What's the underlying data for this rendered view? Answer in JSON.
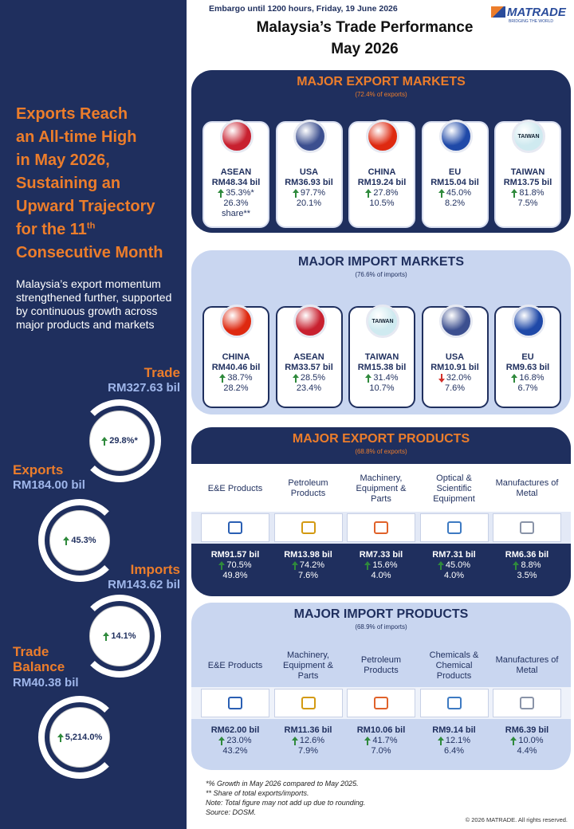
{
  "header": {
    "embargo": "Embargo until 1200 hours, Friday, 19 June 2026",
    "title_lines": [
      "Malaysia’s Trade Performance",
      "May 2026"
    ],
    "logo": "MATRADE",
    "logo_tagline": "BRIDGING THE WORLD"
  },
  "left": {
    "headline": [
      {
        "text": "Exports Reach"
      },
      {
        "text": "an All-time High"
      },
      {
        "text": "in May 2026,"
      },
      {
        "text": "Sustaining an"
      },
      {
        "text": "Upward Trajectory"
      },
      {
        "text": "for the 11",
        "sup": "th"
      },
      {
        "text": "Consecutive Month"
      }
    ],
    "summary": "Malaysia’s export momentum strengthened further, supported by continuous growth across major products and markets",
    "stats": [
      {
        "label": "Trade",
        "value": "RM327.63 bil",
        "growth": "29.8%*",
        "trend": "up"
      },
      {
        "label": "Exports",
        "value": "RM184.00 bil",
        "growth": "45.3%",
        "trend": "up"
      },
      {
        "label": "Imports",
        "value": "RM143.62 bil",
        "growth": "14.1%",
        "trend": "up"
      },
      {
        "label": "Trade Balance",
        "value": "RM40.38 bil",
        "growth": "5,214.0%",
        "trend": "up"
      }
    ]
  },
  "sections": [
    {
      "title": "MAJOR EXPORT MARKETS",
      "subtitle": "(72.4% of exports)",
      "kind": "markets",
      "theme": "dark",
      "items": [
        {
          "name": "ASEAN",
          "value": "RM48.34 bil",
          "growth": "35.3%*",
          "trend": "up",
          "share": "26.3% share**",
          "color": "#c8202f"
        },
        {
          "name": "USA",
          "value": "RM36.93 bil",
          "growth": "97.7%",
          "trend": "up",
          "share": "20.1%",
          "color": "#3c4f8f"
        },
        {
          "name": "CHINA",
          "value": "RM19.24 bil",
          "growth": "27.8%",
          "trend": "up",
          "share": "10.5%",
          "color": "#de2910"
        },
        {
          "name": "EU",
          "value": "RM15.04 bil",
          "growth": "45.0%",
          "trend": "up",
          "share": "8.2%",
          "color": "#1f49a8"
        },
        {
          "name": "TAIWAN",
          "icon_text": "TAIWAN",
          "value": "RM13.75 bil",
          "growth": "81.8%",
          "trend": "up",
          "share": "7.5%",
          "color": "#cfeaf0"
        }
      ]
    },
    {
      "title": "MAJOR IMPORT MARKETS",
      "subtitle": "(76.6% of imports)",
      "kind": "markets",
      "theme": "light",
      "items": [
        {
          "name": "CHINA",
          "value": "RM40.46 bil",
          "growth": "38.7%",
          "trend": "up",
          "share": "28.2%",
          "color": "#de2910"
        },
        {
          "name": "ASEAN",
          "value": "RM33.57 bil",
          "growth": "28.5%",
          "trend": "up",
          "share": "23.4%",
          "color": "#c8202f"
        },
        {
          "name": "TAIWAN",
          "icon_text": "TAIWAN",
          "value": "RM15.38 bil",
          "growth": "31.4%",
          "trend": "up",
          "share": "10.7%",
          "color": "#cfeaf0"
        },
        {
          "name": "USA",
          "value": "RM10.91 bil",
          "growth": "32.0%",
          "trend": "down",
          "share": "7.6%",
          "color": "#3c4f8f"
        },
        {
          "name": "EU",
          "value": "RM9.63 bil",
          "growth": "16.8%",
          "trend": "up",
          "share": "6.7%",
          "color": "#1f49a8"
        }
      ]
    },
    {
      "title": "MAJOR EXPORT PRODUCTS",
      "subtitle": "(68.8% of exports)",
      "kind": "products",
      "theme": "dark",
      "items": [
        {
          "name": "E&E Products",
          "value": "RM91.57 bil",
          "growth": "70.5%",
          "trend": "up",
          "share": "49.8%"
        },
        {
          "name": "Petroleum Products",
          "value": "RM13.98 bil",
          "growth": "74.2%",
          "trend": "up",
          "share": "7.6%"
        },
        {
          "name": "Machinery, Equipment & Parts",
          "value": "RM7.33 bil",
          "growth": "15.6%",
          "trend": "up",
          "share": "4.0%"
        },
        {
          "name": "Optical & Scientific Equipment",
          "value": "RM7.31 bil",
          "growth": "45.0%",
          "trend": "up",
          "share": "4.0%"
        },
        {
          "name": "Manufactures of Metal",
          "value": "RM6.36 bil",
          "growth": "8.8%",
          "trend": "up",
          "share": "3.5%"
        }
      ]
    },
    {
      "title": "MAJOR IMPORT PRODUCTS",
      "subtitle": "(68.9% of imports)",
      "kind": "products",
      "theme": "light",
      "items": [
        {
          "name": "E&E Products",
          "value": "RM62.00 bil",
          "growth": "23.0%",
          "trend": "up",
          "share": "43.2%"
        },
        {
          "name": "Machinery, Equipment & Parts",
          "value": "RM11.36 bil",
          "growth": "12.6%",
          "trend": "up",
          "share": "7.9%"
        },
        {
          "name": "Petroleum Products",
          "value": "RM10.06 bil",
          "growth": "41.7%",
          "trend": "up",
          "share": "7.0%"
        },
        {
          "name": "Chemicals & Chemical Products",
          "value": "RM9.14 bil",
          "growth": "12.1%",
          "trend": "up",
          "share": "6.4%"
        },
        {
          "name": "Manufactures of Metal",
          "value": "RM6.39 bil",
          "growth": "10.0%",
          "trend": "up",
          "share": "4.4%"
        }
      ]
    }
  ],
  "footnotes": [
    "*% Growth in May 2026 compared to May 2025.",
    "** Share of total exports/imports.",
    "Note: Total figure may not add up due to rounding.",
    "Source: DOSM."
  ],
  "copyright": "© 2026 MATRADE. All rights reserved."
}
